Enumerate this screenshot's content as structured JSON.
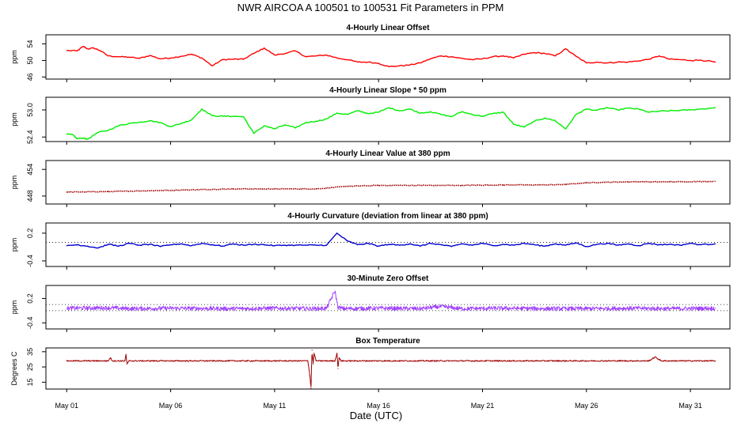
{
  "title": "NWR   AIRCOA A   100501 to 100531   Fit Parameters in PPM",
  "xlabel": "Date (UTC)",
  "x_ticks": [
    "May 01",
    "May 06",
    "May 11",
    "May 16",
    "May 21",
    "May 26",
    "May 31"
  ],
  "x_tick_days": [
    1,
    6,
    11,
    16,
    21,
    26,
    31
  ],
  "x_range": [
    0.0,
    32.9
  ],
  "data_range": [
    1.0,
    32.2
  ],
  "colors": {
    "red": "#ff0000",
    "green": "#00ee00",
    "darkred": "#a00000",
    "blue": "#0000cc",
    "purple": "#a040ff",
    "black": "#000000"
  },
  "chart_data": [
    {
      "type": "line",
      "title": "4-Hourly Linear Offset",
      "ylabel": "ppm",
      "yticks": [
        "46",
        "50",
        "54"
      ],
      "ytick_values": [
        46,
        50,
        54
      ],
      "ylim": [
        45.5,
        56.2
      ],
      "color_key": "red",
      "mode": "line",
      "x": [
        1.0,
        1.5,
        1.8,
        2.0,
        2.3,
        2.6,
        3.0,
        3.5,
        4.0,
        4.5,
        5.0,
        5.5,
        6.0,
        6.5,
        7.0,
        7.5,
        8.0,
        8.5,
        9.0,
        9.5,
        10.0,
        10.5,
        11.0,
        11.5,
        12.0,
        12.5,
        13.0,
        13.5,
        14.0,
        14.5,
        15.0,
        15.5,
        16.0,
        16.5,
        17.0,
        17.5,
        18.0,
        18.5,
        19.0,
        19.5,
        20.0,
        20.5,
        21.0,
        21.5,
        22.0,
        22.5,
        23.0,
        23.5,
        24.0,
        24.5,
        25.0,
        25.5,
        26.0,
        26.5,
        27.0,
        27.5,
        28.0,
        28.5,
        29.0,
        29.5,
        30.0,
        30.5,
        31.0,
        31.5,
        32.2
      ],
      "values": [
        52.4,
        52.3,
        53.4,
        52.8,
        53.0,
        52.4,
        51.1,
        50.9,
        50.8,
        50.5,
        51.2,
        50.4,
        50.6,
        51.0,
        51.5,
        50.6,
        48.7,
        50.2,
        50.3,
        50.3,
        51.7,
        53.0,
        51.3,
        51.7,
        52.3,
        50.9,
        51.1,
        51.3,
        50.6,
        50.2,
        49.6,
        49.6,
        49.3,
        48.5,
        48.7,
        48.9,
        49.4,
        50.4,
        51.1,
        50.9,
        50.5,
        50.2,
        50.4,
        50.9,
        51.1,
        50.6,
        51.5,
        51.9,
        51.7,
        51.1,
        52.8,
        51.0,
        49.4,
        49.6,
        49.4,
        49.6,
        49.6,
        49.9,
        50.3,
        51.1,
        50.3,
        50.2,
        50.0,
        50.1,
        49.6
      ]
    },
    {
      "type": "line",
      "title": "4-Hourly Linear Slope * 50 ppm",
      "ylabel": "ppm",
      "yticks": [
        "52.4",
        "53.0"
      ],
      "ytick_values": [
        52.4,
        53.0
      ],
      "ylim": [
        52.3,
        53.28
      ],
      "color_key": "green",
      "mode": "line",
      "x": [
        1.0,
        1.3,
        1.5,
        1.8,
        2.0,
        2.5,
        3.0,
        3.5,
        4.0,
        4.5,
        5.0,
        5.5,
        6.0,
        6.5,
        7.0,
        7.5,
        8.0,
        8.5,
        9.0,
        9.5,
        10.0,
        10.5,
        11.0,
        11.5,
        12.0,
        12.5,
        13.0,
        13.5,
        14.0,
        14.5,
        15.0,
        15.5,
        16.0,
        16.5,
        17.0,
        17.5,
        18.0,
        18.5,
        19.0,
        19.5,
        20.0,
        20.5,
        21.0,
        21.5,
        22.0,
        22.5,
        23.0,
        23.5,
        24.0,
        24.5,
        25.0,
        25.5,
        26.0,
        26.5,
        27.0,
        27.5,
        28.0,
        28.5,
        29.0,
        29.5,
        30.0,
        30.5,
        31.0,
        31.5,
        32.2
      ],
      "values": [
        52.46,
        52.45,
        52.36,
        52.38,
        52.35,
        52.5,
        52.55,
        52.65,
        52.7,
        52.73,
        52.76,
        52.72,
        52.63,
        52.7,
        52.78,
        53.02,
        52.87,
        52.86,
        52.86,
        52.85,
        52.48,
        52.65,
        52.58,
        52.67,
        52.6,
        52.72,
        52.75,
        52.8,
        52.93,
        52.9,
        52.98,
        52.92,
        52.95,
        53.05,
        52.98,
        53.02,
        52.93,
        52.96,
        52.9,
        52.85,
        52.96,
        52.9,
        52.86,
        52.92,
        52.95,
        52.68,
        52.62,
        52.75,
        52.82,
        52.76,
        52.58,
        52.9,
        53.02,
        52.99,
        53.05,
        53.0,
        53.04,
        53.02,
        52.95,
        52.97,
        52.98,
        52.99,
        53.0,
        53.02,
        53.05
      ]
    },
    {
      "type": "line",
      "title": "4-Hourly Linear Value at 380 ppm",
      "ylabel": "ppm",
      "yticks": [
        "448",
        "454"
      ],
      "ytick_values": [
        448,
        454
      ],
      "ylim": [
        446.2,
        456.0
      ],
      "color_key": "darkred",
      "mode": "dotted",
      "x": [
        1.0,
        3.0,
        5.0,
        7.0,
        9.0,
        11.0,
        13.0,
        14.5,
        16.0,
        18.0,
        20.0,
        22.0,
        24.0,
        25.0,
        26.0,
        28.0,
        30.0,
        32.2
      ],
      "values": [
        448.9,
        449.0,
        449.2,
        449.4,
        449.6,
        449.6,
        449.6,
        450.2,
        450.4,
        450.4,
        450.4,
        450.5,
        450.5,
        450.6,
        451.0,
        451.2,
        451.2,
        451.3
      ]
    },
    {
      "type": "line",
      "title": "4-Hourly Curvature (deviation from linear at 380 ppm)",
      "ylabel": "ppm",
      "yticks": [
        "-0.4",
        "0.2"
      ],
      "ytick_values": [
        -0.4,
        0.2
      ],
      "ylim": [
        -0.52,
        0.42
      ],
      "color_key": "blue",
      "mode": "line",
      "reference_lines": [
        0.0
      ],
      "x": [
        1.0,
        1.5,
        2.0,
        2.5,
        3.0,
        3.5,
        4.0,
        4.5,
        5.0,
        5.5,
        6.0,
        6.5,
        7.0,
        7.5,
        8.0,
        8.5,
        9.0,
        9.5,
        10.0,
        10.5,
        11.0,
        11.5,
        12.0,
        12.5,
        13.0,
        13.5,
        14.0,
        14.5,
        15.0,
        15.5,
        16.0,
        16.5,
        17.0,
        17.5,
        18.0,
        18.5,
        19.0,
        19.5,
        20.0,
        20.5,
        21.0,
        21.5,
        22.0,
        22.5,
        23.0,
        23.5,
        24.0,
        24.5,
        25.0,
        25.5,
        26.0,
        26.5,
        27.0,
        27.5,
        28.0,
        28.5,
        29.0,
        29.5,
        30.0,
        30.5,
        31.0,
        31.5,
        32.2
      ],
      "values": [
        -0.07,
        -0.05,
        -0.08,
        -0.12,
        -0.04,
        -0.08,
        -0.02,
        -0.06,
        -0.04,
        -0.09,
        -0.05,
        -0.03,
        -0.07,
        -0.02,
        -0.05,
        -0.08,
        -0.03,
        -0.06,
        -0.04,
        -0.05,
        -0.07,
        -0.06,
        -0.06,
        -0.06,
        -0.06,
        -0.06,
        0.2,
        0.03,
        -0.05,
        -0.02,
        -0.08,
        -0.04,
        -0.06,
        -0.03,
        -0.08,
        -0.02,
        -0.05,
        -0.09,
        -0.03,
        -0.06,
        -0.02,
        -0.07,
        -0.04,
        -0.06,
        -0.02,
        -0.05,
        -0.08,
        -0.03,
        -0.06,
        -0.01,
        -0.09,
        -0.04,
        -0.02,
        -0.06,
        -0.03,
        -0.07,
        -0.02,
        -0.05,
        -0.04,
        -0.06,
        -0.02,
        -0.05,
        -0.03
      ]
    },
    {
      "type": "scatter",
      "title": "30-Minute Zero Offset",
      "ylabel": "ppm",
      "yticks": [
        "-0.4",
        "0.2"
      ],
      "ytick_values": [
        -0.4,
        0.2
      ],
      "ylim": [
        -0.55,
        0.52
      ],
      "color_key": "purple",
      "mode": "noisy",
      "noise_amplitude": 0.05,
      "step_days": 0.0208,
      "reference_lines": [
        -0.1,
        0.05
      ],
      "x": [
        1.0,
        3.0,
        4.0,
        6.0,
        9.0,
        11.0,
        13.0,
        13.5,
        13.9,
        14.05,
        14.3,
        16.0,
        18.0,
        19.0,
        20.0,
        22.0,
        24.0,
        26.0,
        28.0,
        30.0,
        32.2
      ],
      "values": [
        -0.04,
        -0.03,
        -0.05,
        -0.04,
        -0.05,
        -0.04,
        -0.05,
        -0.04,
        0.38,
        -0.02,
        -0.05,
        -0.04,
        -0.05,
        0.0,
        -0.05,
        -0.04,
        -0.05,
        -0.05,
        -0.04,
        -0.05,
        -0.04
      ]
    },
    {
      "type": "line",
      "title": "Box Temperature",
      "ylabel": "Degrees C",
      "yticks": [
        "15",
        "25",
        "35"
      ],
      "ytick_values": [
        15,
        25,
        35
      ],
      "ylim": [
        10.5,
        37.5
      ],
      "color_key": "darkred",
      "mode": "noisy",
      "noise_amplitude": 0.4,
      "step_days": 0.0208,
      "x": [
        1.0,
        3.0,
        3.1,
        3.2,
        3.8,
        3.85,
        3.9,
        4.0,
        10.0,
        12.6,
        12.7,
        12.75,
        12.8,
        12.85,
        12.9,
        13.0,
        13.5,
        13.9,
        14.0,
        14.05,
        14.1,
        14.2,
        15.0,
        29.0,
        29.3,
        29.6,
        30.0,
        32.2
      ],
      "values": [
        29.0,
        29.0,
        31.0,
        29.0,
        29.0,
        33.0,
        27.0,
        29.0,
        29.0,
        29.0,
        19.0,
        11.0,
        36.0,
        27.0,
        34.0,
        29.0,
        29.0,
        29.0,
        34.0,
        24.0,
        31.0,
        29.0,
        29.0,
        29.0,
        31.5,
        29.0,
        29.0,
        29.0
      ]
    }
  ]
}
